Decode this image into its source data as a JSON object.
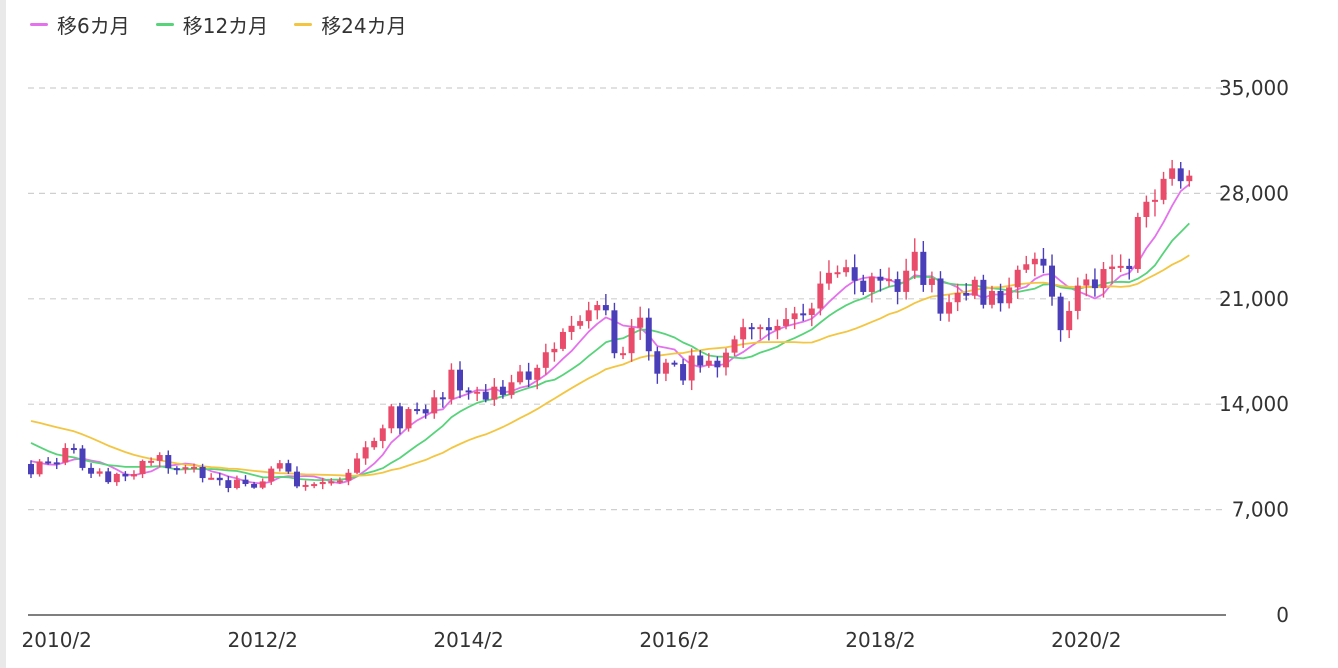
{
  "legend": [
    {
      "label": "移6カ月",
      "color": "#e472ec"
    },
    {
      "label": "移12カ月",
      "color": "#57d37a"
    },
    {
      "label": "移24カ月",
      "color": "#f3c541"
    }
  ],
  "chart_data": {
    "type": "candlestick",
    "title": "",
    "xlabel": "",
    "ylabel": "",
    "ylim": [
      0,
      35000
    ],
    "y_ticks": [
      0,
      7000,
      14000,
      21000,
      28000,
      35000
    ],
    "y_tick_labels": [
      "0",
      "7,000",
      "14,000",
      "21,000",
      "28,000",
      "35,000"
    ],
    "y_axis_position": "right",
    "grid": "horizontal dashed",
    "legend_position": "top-left",
    "x_tick_labels": [
      "2010/2",
      "2012/2",
      "2014/2",
      "2016/2",
      "2018/2",
      "2020/2"
    ],
    "up_color": "#e94b6a",
    "down_color": "#4a3fb8",
    "months_from": "2009/11",
    "close": [
      9345,
      10198,
      10138,
      10126,
      11089,
      11057,
      9768,
      9383,
      9537,
      8824,
      9369,
      9202,
      9360,
      10229,
      10237,
      10624,
      9755,
      9694,
      9816,
      9833,
      9094,
      9113,
      8955,
      8434,
      8988,
      8700,
      8455,
      8873,
      9723,
      10084,
      9521,
      8543,
      8638,
      8695,
      8839,
      8870,
      8928,
      9446,
      10395,
      11138,
      11559,
      12398,
      13860,
      12397,
      13677,
      13668,
      13389,
      14456,
      14327,
      16291,
      14915,
      14827,
      14828,
      14304,
      15162,
      14619,
      15455,
      16174,
      15621,
      16414,
      17451,
      17674,
      18798,
      19207,
      19520,
      20236,
      20585,
      20235,
      17388,
      17388,
      19083,
      19747,
      17518,
      16026,
      16758,
      16666,
      15576,
      17235,
      16569,
      16887,
      16449,
      17425,
      18308,
      19114,
      19041,
      19119,
      18909,
      19197,
      19651,
      20033,
      19925,
      20356,
      22012,
      22725,
      22765,
      23098,
      22202,
      21454,
      22468,
      22202,
      22305,
      21457,
      22865,
      24120,
      21920,
      22351,
      20015,
      20773,
      21385,
      21205,
      22259,
      20601,
      21522,
      20704,
      21756,
      22927,
      23294,
      23656,
      23205,
      21143,
      18917,
      20194,
      21877,
      22288,
      21710,
      22977,
      23140,
      23185,
      22977,
      26434,
      27444,
      27572,
      28966,
      29663,
      28813,
      29179
    ]
  }
}
